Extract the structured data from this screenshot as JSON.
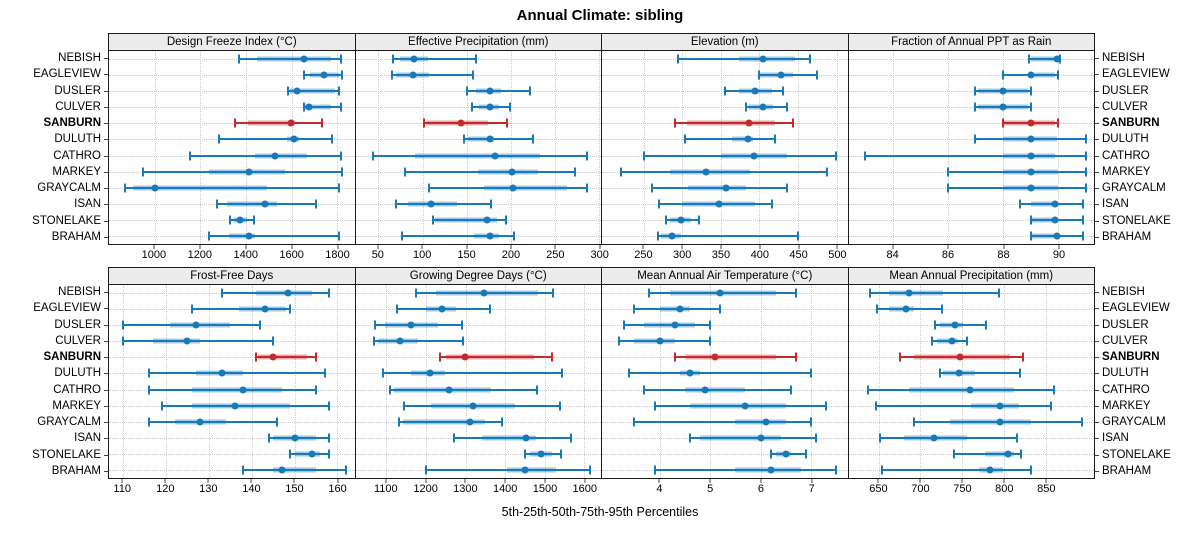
{
  "title": "Annual Climate: sibling",
  "caption": "5th-25th-50th-75th-95th Percentiles",
  "colors": {
    "series_blue": "#1878B8",
    "highlight_red": "#C22B2B",
    "strip_bg": "#ECECEC",
    "grid": "#C8C8C8",
    "border": "#1a1a1a"
  },
  "stations": [
    "NEBISH",
    "EAGLEVIEW",
    "DUSLER",
    "CULVER",
    "SANBURN",
    "DULUTH",
    "CATHRO",
    "MARKEY",
    "GRAYCALM",
    "ISAN",
    "STONELAKE",
    "BRAHAM"
  ],
  "highlight_station": "SANBURN",
  "chart_data": {
    "type": "dotplot-percentile-ranges",
    "percentiles": [
      5,
      25,
      50,
      75,
      95
    ],
    "legend": "thin line = 5th-95th, thick band = 25th-75th, dot = 50th percentile",
    "rows": [
      {
        "panels": [
          {
            "title": "Design Freeze Index (°C)",
            "xlim": [
              800,
              1875
            ],
            "ticks": [
              1000,
              1200,
              1400,
              1600,
              1800
            ],
            "values": [
              [
                1370,
                1450,
                1655,
                1770,
                1815
              ],
              [
                1655,
                1682,
                1743,
                1808,
                1822
              ],
              [
                1584,
                1592,
                1624,
                1790,
                1805
              ],
              [
                1652,
                1656,
                1677,
                1770,
                1816
              ],
              [
                1353,
                1410,
                1595,
                1616,
                1734
              ],
              [
                1281,
                1580,
                1611,
                1634,
                1778
              ],
              [
                1155,
                1440,
                1528,
                1668,
                1814
              ],
              [
                951,
                1237,
                1413,
                1572,
                1820
              ],
              [
                868,
                907,
                1000,
                1490,
                1805
              ],
              [
                1273,
                1317,
                1484,
                1537,
                1705
              ],
              [
                1332,
                1347,
                1374,
                1404,
                1436
              ],
              [
                1237,
                1325,
                1413,
                1440,
                1808
              ]
            ]
          },
          {
            "title": "Effective Precipitation (mm)",
            "xlim": [
              24,
              302
            ],
            "ticks": [
              50,
              100,
              150,
              200,
              250,
              300
            ],
            "values": [
              [
                66,
                74,
                90,
                106,
                160
              ],
              [
                65,
                70,
                89,
                107,
                157
              ],
              [
                150,
                161,
                176,
                189,
                222
              ],
              [
                156,
                164,
                176,
                187,
                199
              ],
              [
                102,
                104,
                144,
                174,
                196
              ],
              [
                147,
                151,
                176,
                181,
                225
              ],
              [
                44,
                91,
                182,
                233,
                286
              ],
              [
                80,
                163,
                201,
                231,
                272
              ],
              [
                107,
                170,
                202,
                264,
                286
              ],
              [
                70,
                83,
                109,
                139,
                178
              ],
              [
                112,
                114,
                173,
                184,
                194
              ],
              [
                77,
                158,
                176,
                186,
                203
              ]
            ]
          },
          {
            "title": "Elevation (m)",
            "xlim": [
              196,
              514
            ],
            "ticks": [
              250,
              300,
              350,
              400,
              450,
              500
            ],
            "values": [
              [
                295,
                373,
                405,
                446,
                465
              ],
              [
                399,
                401,
                428,
                444,
                475
              ],
              [
                355,
                373,
                394,
                416,
                431
              ],
              [
                382,
                387,
                404,
                418,
                435
              ],
              [
                290,
                306,
                387,
                420,
                444
              ],
              [
                304,
                365,
                385,
                392,
                420
              ],
              [
                251,
                350,
                393,
                436,
                499
              ],
              [
                220,
                284,
                331,
                388,
                488
              ],
              [
                261,
                308,
                357,
                382,
                436
              ],
              [
                270,
                300,
                347,
                394,
                416
              ],
              [
                279,
                284,
                298,
                311,
                321
              ],
              [
                268,
                272,
                287,
                298,
                450
              ]
            ]
          },
          {
            "title": "Fraction of Annual PPT as Rain",
            "xlim": [
              82.4,
              91.3
            ],
            "ticks": [
              84,
              86,
              88,
              90
            ],
            "values": [
              [
                88.95,
                89.0,
                89.95,
                90.0,
                90.05
              ],
              [
                88.0,
                88.9,
                89.0,
                89.9,
                90.0
              ],
              [
                87.0,
                87.1,
                88.0,
                88.9,
                89.0
              ],
              [
                87.0,
                87.1,
                88.0,
                88.9,
                89.0
              ],
              [
                88.0,
                88.05,
                89.0,
                89.9,
                90.0
              ],
              [
                87.0,
                88.0,
                89.0,
                89.95,
                91.0
              ],
              [
                83.0,
                88.0,
                89.0,
                89.9,
                91.0
              ],
              [
                86.0,
                88.0,
                89.0,
                90.0,
                91.0
              ],
              [
                86.0,
                88.0,
                89.0,
                90.0,
                91.0
              ],
              [
                88.6,
                89.0,
                89.9,
                90.0,
                90.9
              ],
              [
                89.0,
                89.05,
                89.9,
                90.0,
                90.9
              ],
              [
                89.0,
                89.05,
                89.95,
                90.0,
                90.9
              ]
            ]
          }
        ]
      },
      {
        "panels": [
          {
            "title": "Frost-Free Days",
            "xlim": [
              106.7,
              164
            ],
            "ticks": [
              110,
              120,
              130,
              140,
              150,
              160
            ],
            "values": [
              [
                133,
                141,
                148.5,
                154,
                158
              ],
              [
                126,
                137,
                143,
                148,
                149
              ],
              [
                110,
                121,
                127,
                135,
                142
              ],
              [
                110,
                117,
                125,
                128,
                145
              ],
              [
                141,
                141.5,
                145,
                153,
                155
              ],
              [
                116,
                127,
                133,
                138,
                157
              ],
              [
                116,
                126,
                138,
                147,
                155
              ],
              [
                119,
                126,
                136,
                149,
                158
              ],
              [
                116,
                122,
                128,
                134,
                146
              ],
              [
                144,
                145,
                150,
                155,
                158
              ],
              [
                149,
                150,
                154,
                156,
                158
              ],
              [
                138,
                145,
                147,
                155,
                162
              ]
            ]
          },
          {
            "title": "Growing Degree Days (°C)",
            "xlim": [
              1022,
              1642
            ],
            "ticks": [
              1100,
              1200,
              1300,
              1400,
              1500,
              1600
            ],
            "values": [
              [
                1174,
                1226,
                1347,
                1484,
                1520
              ],
              [
                1128,
                1201,
                1241,
                1276,
                1362
              ],
              [
                1072,
                1097,
                1161,
                1230,
                1291
              ],
              [
                1068,
                1078,
                1134,
                1180,
                1293
              ],
              [
                1236,
                1251,
                1298,
                1474,
                1518
              ],
              [
                1091,
                1163,
                1209,
                1249,
                1543
              ],
              [
                1110,
                1118,
                1258,
                1363,
                1480
              ],
              [
                1144,
                1213,
                1320,
                1424,
                1538
              ],
              [
                1133,
                1141,
                1311,
                1349,
                1393
              ],
              [
                1270,
                1341,
                1453,
                1478,
                1566
              ],
              [
                1451,
                1463,
                1491,
                1518,
                1541
              ],
              [
                1199,
                1405,
                1449,
                1528,
                1613
              ]
            ]
          },
          {
            "title": "Mean Annual Air Temperature (°C)",
            "xlim": [
              2.86,
              7.72
            ],
            "ticks": [
              4,
              5,
              6,
              7
            ],
            "values": [
              [
                3.8,
                4.2,
                5.2,
                6.3,
                6.7
              ],
              [
                3.5,
                4.0,
                4.4,
                4.6,
                5.2
              ],
              [
                3.3,
                3.7,
                4.3,
                4.7,
                5.0
              ],
              [
                3.2,
                3.5,
                4.0,
                4.3,
                5.0
              ],
              [
                4.3,
                4.5,
                5.1,
                6.3,
                6.7
              ],
              [
                3.4,
                4.4,
                4.6,
                4.8,
                7.0
              ],
              [
                3.7,
                4.5,
                4.9,
                5.7,
                6.6
              ],
              [
                3.9,
                4.6,
                5.7,
                6.5,
                7.3
              ],
              [
                3.5,
                5.5,
                6.1,
                6.5,
                7.0
              ],
              [
                4.6,
                4.8,
                6.0,
                6.4,
                7.1
              ],
              [
                6.2,
                6.3,
                6.5,
                6.6,
                6.9
              ],
              [
                3.9,
                5.5,
                6.2,
                6.8,
                7.5
              ]
            ]
          },
          {
            "title": "Mean Annual Precipitation (mm)",
            "xlim": [
              614,
              908
            ],
            "ticks": [
              650,
              700,
              750,
              800,
              850
            ],
            "values": [
              [
                640,
                662,
                686,
                727,
                794
              ],
              [
                648,
                662,
                683,
                693,
                726
              ],
              [
                718,
                724,
                741,
                751,
                779
              ],
              [
                714,
                720,
                738,
                745,
                756
              ],
              [
                676,
                693,
                748,
                808,
                823
              ],
              [
                724,
                727,
                746,
                766,
                819
              ],
              [
                637,
                687,
                759,
                812,
                860
              ],
              [
                647,
                761,
                796,
                818,
                856
              ],
              [
                693,
                735,
                796,
                832,
                894
              ],
              [
                652,
                680,
                716,
                756,
                816
              ],
              [
                740,
                777,
                805,
                812,
                821
              ],
              [
                654,
                770,
                783,
                799,
                833
              ]
            ]
          }
        ]
      }
    ]
  }
}
